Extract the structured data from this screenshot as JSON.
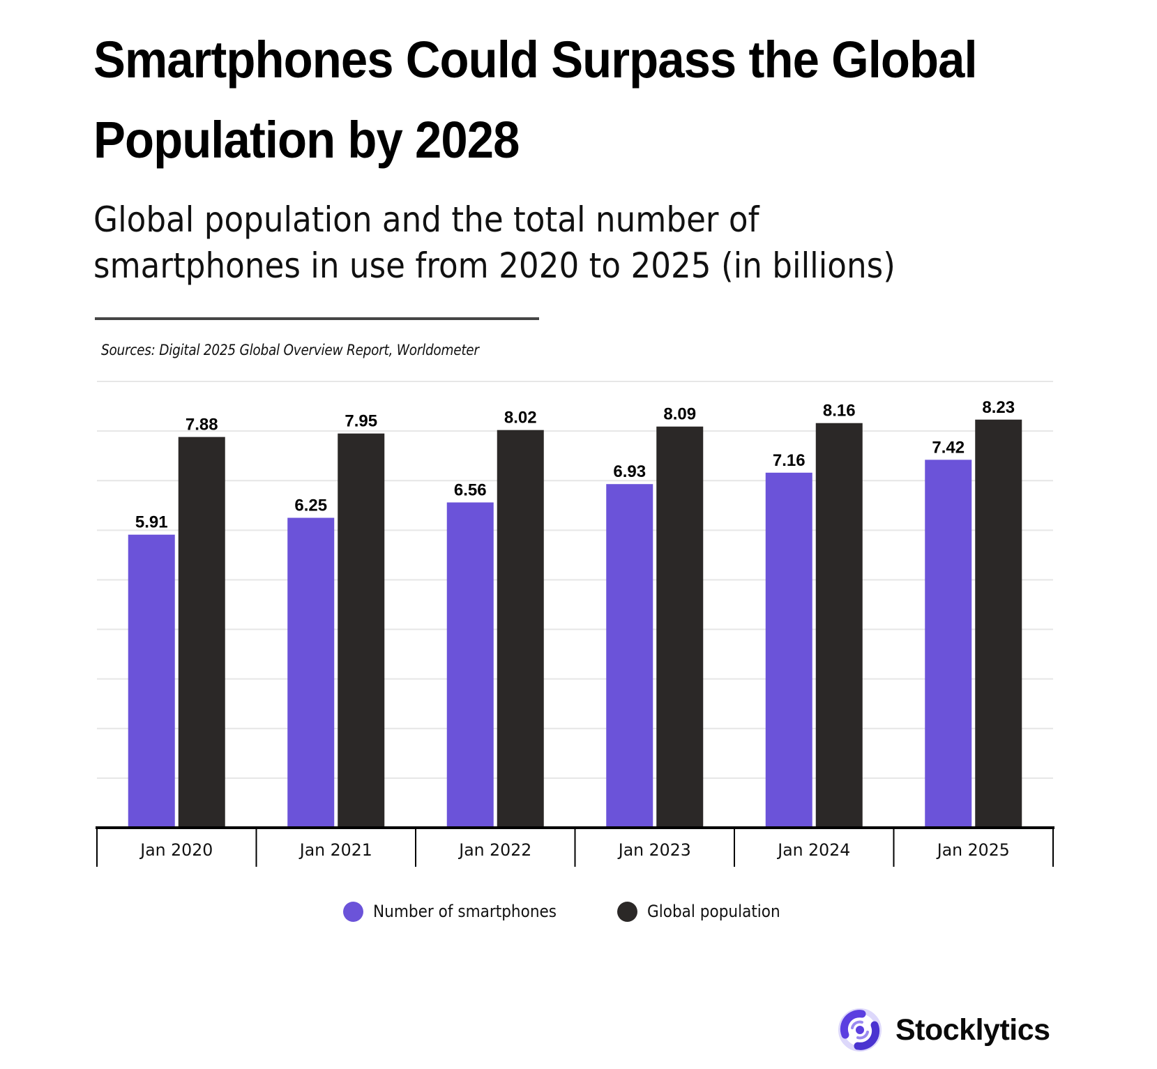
{
  "header": {
    "title_lines": [
      "Smartphones Could Surpass the Global",
      "Population by 2028"
    ],
    "subtitle_lines": [
      "Global population and the total number of",
      "smartphones in use from 2020 to 2025 (in billions)"
    ],
    "sources": "Sources: Digital 2025 Global Overview Report, Worldometer"
  },
  "colors": {
    "smartphones": "#6b53d9",
    "population": "#2b2827",
    "grid": "#e6e6e6",
    "axis": "#000000"
  },
  "chart_data": {
    "type": "bar",
    "title": "Smartphones Could Surpass the Global Population by 2028",
    "subtitle": "Global population and the total number of smartphones in use from 2020 to 2025 (in billions)",
    "xlabel": "",
    "ylabel": "",
    "categories": [
      "Jan 2020",
      "Jan 2021",
      "Jan 2022",
      "Jan 2023",
      "Jan 2024",
      "Jan 2025"
    ],
    "series": [
      {
        "name": "Number of smartphones",
        "values": [
          5.91,
          6.25,
          6.56,
          6.93,
          7.16,
          7.42
        ]
      },
      {
        "name": "Global population",
        "values": [
          7.88,
          7.95,
          8.02,
          8.09,
          8.16,
          8.23
        ]
      }
    ],
    "ylim": [
      0,
      9
    ],
    "grid": true,
    "y_tick_labels_visible": false,
    "data_labels": true,
    "legend_position": "bottom-center"
  },
  "legend": {
    "items": [
      {
        "label": "Number of smartphones",
        "color": "#6b53d9"
      },
      {
        "label": "Global population",
        "color": "#2b2827"
      }
    ]
  },
  "brand": {
    "name": "Stocklytics",
    "icon": "stocklytics-logo-icon"
  }
}
